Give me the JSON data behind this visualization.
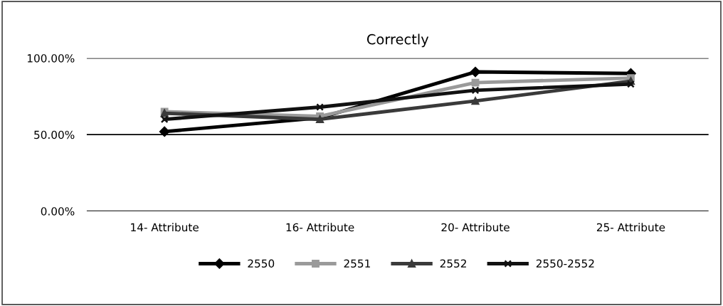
{
  "chart_data": {
    "type": "line",
    "title": "Correctly",
    "categories": [
      "14- Attribute",
      "16- Attribute",
      "20- Attribute",
      "25- Attribute"
    ],
    "series": [
      {
        "name": "2550",
        "color": "#000000",
        "marker": "diamond",
        "values": [
          0.52,
          0.61,
          0.91,
          0.9
        ]
      },
      {
        "name": "2551",
        "color": "#9a9a9a",
        "marker": "square",
        "values": [
          0.65,
          0.62,
          0.84,
          0.87
        ]
      },
      {
        "name": "2552",
        "color": "#3a3a3a",
        "marker": "triangle",
        "values": [
          0.64,
          0.6,
          0.72,
          0.85
        ]
      },
      {
        "name": "2550-2552",
        "color": "#111111",
        "marker": "cross",
        "values": [
          0.6,
          0.68,
          0.79,
          0.83
        ]
      }
    ],
    "ylim": [
      0,
      1
    ],
    "yticks": [
      {
        "value": 0,
        "label": "0.00%"
      },
      {
        "value": 0.5,
        "label": "50.00%"
      },
      {
        "value": 1,
        "label": "100.00%"
      }
    ],
    "grid": "y",
    "legend": "bottom"
  }
}
